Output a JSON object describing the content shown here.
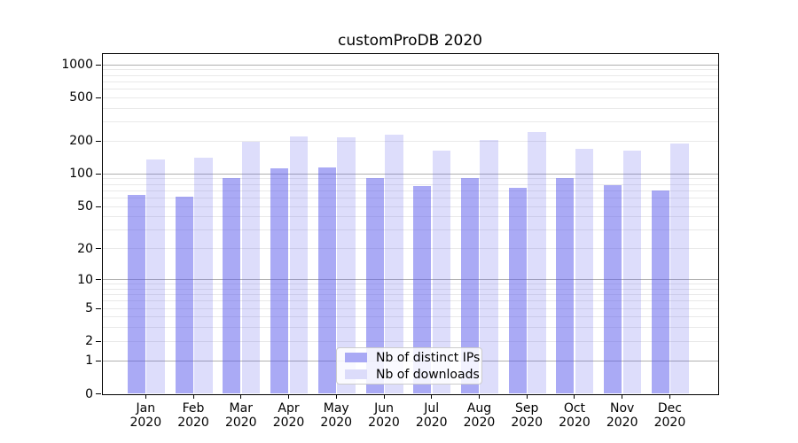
{
  "title": "customProDB 2020",
  "chart_data": {
    "type": "bar",
    "title": "customProDB 2020",
    "categories": [
      "Jan 2020",
      "Feb 2020",
      "Mar 2020",
      "Apr 2020",
      "May 2020",
      "Jun 2020",
      "Jul 2020",
      "Aug 2020",
      "Sep 2020",
      "Oct 2020",
      "Nov 2020",
      "Dec 2020"
    ],
    "series": [
      {
        "name": "Nb of distinct IPs",
        "color": "#a9a9f5",
        "values": [
          64,
          62,
          91,
          112,
          115,
          91,
          78,
          91,
          74,
          92,
          79,
          71
        ]
      },
      {
        "name": "Nb of downloads",
        "color": "#dcdcfa",
        "values": [
          135,
          140,
          199,
          221,
          216,
          231,
          165,
          205,
          241,
          171,
          164,
          192
        ]
      }
    ],
    "xlabel": "",
    "ylabel": "",
    "yscale": "log10(value+1)",
    "yticks": [
      0,
      1,
      2,
      5,
      10,
      20,
      50,
      100,
      200,
      500,
      1000
    ],
    "ylim": [
      0,
      1276
    ],
    "grid": "horizontal major at powers of 10, faint log minor lines",
    "legend_position": "lower center inside plot",
    "colors": {
      "bar_base": "#5555eb",
      "major_grid": "#b0b0b0",
      "minor_grid": "#e9e9e9",
      "frame": "#000000",
      "legend_border": "#cccccc"
    }
  }
}
